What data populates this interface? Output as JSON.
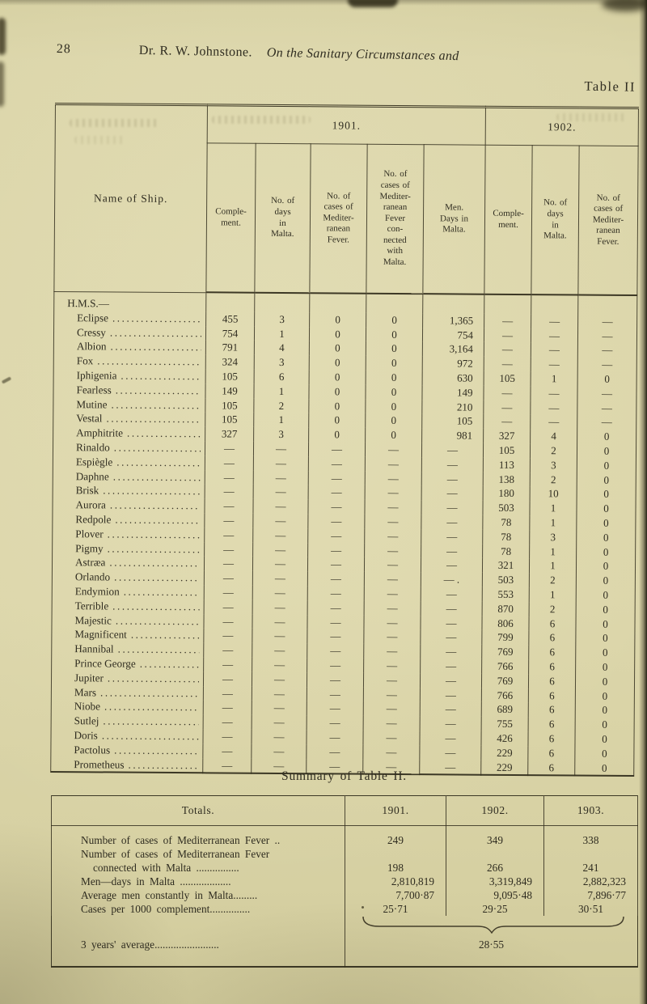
{
  "page": {
    "number": "28",
    "running_author": "Dr. R. W. Johnstone.",
    "running_title": "On the Sanitary Circumstances and",
    "table_label": "Table II"
  },
  "main_table": {
    "name_header": "Name of Ship.",
    "year_groups": [
      "1901.",
      "1902."
    ],
    "col_headers": [
      "Comple-\nment.",
      "No. of\ndays\nin\nMalta.",
      "No. of\ncases of\nMediter-\nranean\nFever.",
      "No. of\ncases of\nMediter-\nranean\nFever\ncon-\nnected\nwith\nMalta.",
      "Men.\nDays in\nMalta.",
      "Comple-\nment.",
      "No. of\ndays\nin\nMalta.",
      "No. of\ncases of\nMediter-\nranean\nFever."
    ],
    "leader_dots": "........................................................",
    "rows": [
      {
        "name": "H.M.S.—",
        "group": true,
        "values": [
          "",
          "",
          "",
          "",
          "",
          "",
          "",
          ""
        ]
      },
      {
        "name": "Eclipse",
        "values": [
          "455",
          "3",
          "0",
          "0",
          "1,365",
          "—",
          "—",
          "—"
        ]
      },
      {
        "name": "Cressy",
        "values": [
          "754",
          "1",
          "0",
          "0",
          "754",
          "—",
          "—",
          "—"
        ]
      },
      {
        "name": "Albion",
        "values": [
          "791",
          "4",
          "0",
          "0",
          "3,164",
          "—",
          "—",
          "—"
        ]
      },
      {
        "name": "Fox",
        "values": [
          "324",
          "3",
          "0",
          "0",
          "972",
          "—",
          "—",
          "—"
        ]
      },
      {
        "name": "Iphigenia",
        "values": [
          "105",
          "6",
          "0",
          "0",
          "630",
          "105",
          "1",
          "0"
        ]
      },
      {
        "name": "Fearless",
        "values": [
          "149",
          "1",
          "0",
          "0",
          "149",
          "—",
          "—",
          "—"
        ]
      },
      {
        "name": "Mutine",
        "values": [
          "105",
          "2",
          "0",
          "0",
          "210",
          "—",
          "—",
          "—"
        ]
      },
      {
        "name": "Vestal",
        "values": [
          "105",
          "1",
          "0",
          "0",
          "105",
          "—",
          "—",
          "—"
        ]
      },
      {
        "name": "Amphitrite",
        "values": [
          "327",
          "3",
          "0",
          "0",
          "981",
          "327",
          "4",
          "0"
        ]
      },
      {
        "name": "Rinaldo",
        "values": [
          "—",
          "—",
          "—",
          "—",
          "—",
          "105",
          "2",
          "0"
        ]
      },
      {
        "name": "Espiègle",
        "values": [
          "—",
          "—",
          "—",
          "—",
          "—",
          "113",
          "3",
          "0"
        ]
      },
      {
        "name": "Daphne",
        "values": [
          "—",
          "—",
          "—",
          "—",
          "—",
          "138",
          "2",
          "0"
        ]
      },
      {
        "name": "Brisk",
        "values": [
          "—",
          "—",
          "—",
          "—",
          "—",
          "180",
          "10",
          "0"
        ]
      },
      {
        "name": "Aurora",
        "values": [
          "—",
          "—",
          "—",
          "—",
          "—",
          "503",
          "1",
          "0"
        ]
      },
      {
        "name": "Redpole",
        "values": [
          "—",
          "—",
          "—",
          "—",
          "—",
          "78",
          "1",
          "0"
        ]
      },
      {
        "name": "Plover",
        "values": [
          "—",
          "—",
          "—",
          "—",
          "—",
          "78",
          "3",
          "0"
        ]
      },
      {
        "name": "Pigmy",
        "values": [
          "—",
          "—",
          "—",
          "—",
          "—",
          "78",
          "1",
          "0"
        ]
      },
      {
        "name": "Astræa",
        "values": [
          "—",
          "—",
          "—",
          "—",
          "—",
          "321",
          "1",
          "0"
        ]
      },
      {
        "name": "Orlando",
        "values": [
          "—",
          "—",
          "—",
          "—",
          "— .",
          "503",
          "2",
          "0"
        ]
      },
      {
        "name": "Endymion",
        "values": [
          "—",
          "—",
          "—",
          "—",
          "—",
          "553",
          "1",
          "0"
        ]
      },
      {
        "name": "Terrible",
        "values": [
          "—",
          "—",
          "—",
          "—",
          "—",
          "870",
          "2",
          "0"
        ]
      },
      {
        "name": "Majestic",
        "values": [
          "—",
          "—",
          "—",
          "—",
          "—",
          "806",
          "6",
          "0"
        ]
      },
      {
        "name": "Magnificent",
        "values": [
          "—",
          "—",
          "—",
          "—",
          "—",
          "799",
          "6",
          "0"
        ]
      },
      {
        "name": "Hannibal",
        "values": [
          "—",
          "—",
          "—",
          "—",
          "—",
          "769",
          "6",
          "0"
        ]
      },
      {
        "name": "Prince George",
        "values": [
          "—",
          "—",
          "—",
          "—",
          "—",
          "766",
          "6",
          "0"
        ]
      },
      {
        "name": "Jupiter",
        "values": [
          "—",
          "—",
          "—",
          "—",
          "—",
          "769",
          "6",
          "0"
        ]
      },
      {
        "name": "Mars",
        "values": [
          "—",
          "—",
          "—",
          "—",
          "—",
          "766",
          "6",
          "0"
        ]
      },
      {
        "name": "Niobe",
        "values": [
          "—",
          "—",
          "—",
          "—",
          "—",
          "689",
          "6",
          "0"
        ]
      },
      {
        "name": "Sutlej",
        "values": [
          "—",
          "—",
          "—",
          "—",
          "—",
          "755",
          "6",
          "0"
        ]
      },
      {
        "name": "Doris",
        "values": [
          "—",
          "—",
          "—",
          "—",
          "—",
          "426",
          "6",
          "0"
        ]
      },
      {
        "name": "Pactolus",
        "values": [
          "—",
          "—",
          "—",
          "—",
          "—",
          "229",
          "6",
          "0"
        ]
      },
      {
        "name": "Prometheus",
        "values": [
          "—",
          "—",
          "—",
          "—",
          "—",
          "229",
          "6",
          "0"
        ]
      }
    ]
  },
  "summary": {
    "title": "Summary of Table II.",
    "col_headers": [
      "Totals.",
      "1901.",
      "1902.",
      "1903."
    ],
    "rows": [
      {
        "label_lines": [
          "Number of cases of Mediterranean Fever .."
        ],
        "values": [
          "249",
          "349",
          "338"
        ],
        "align": "center"
      },
      {
        "label_lines": [
          "Number of cases of Mediterranean Fever",
          "connected with Malta ................"
        ],
        "values": [
          "198",
          "266",
          "241"
        ],
        "align": "center"
      },
      {
        "label_lines": [
          "Men—days in Malta ..................."
        ],
        "values": [
          "2,810,819",
          "3,319,849",
          "2,882,323"
        ],
        "align": "right"
      },
      {
        "label_lines": [
          "Average men constantly in Malta........."
        ],
        "values": [
          "7,700·87",
          "9,095·48",
          "7,896·77"
        ],
        "align": "right"
      },
      {
        "label_lines": [
          "Cases per 1000 complement..............."
        ],
        "values": [
          "25·71",
          "29·25",
          "30·51"
        ],
        "align": "center"
      }
    ],
    "average_label": "3 years' average........................",
    "average_value": "28·55"
  }
}
